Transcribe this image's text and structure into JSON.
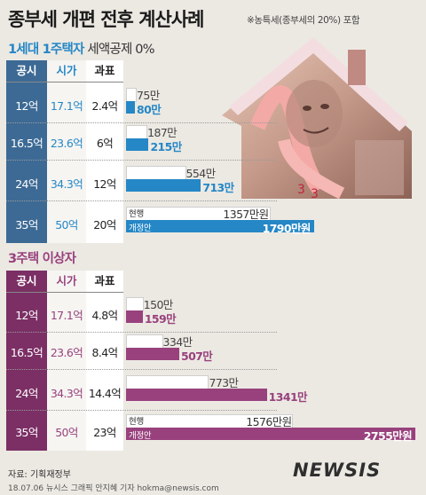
{
  "title": "종부세 개편 전후 계산사례",
  "note": "※농특세(종부세의 20%) 포함",
  "headers": {
    "gongsi": "공시",
    "siga": "시가",
    "gwapyo": "과표"
  },
  "labels": {
    "current": "현행",
    "proposed": "개정안"
  },
  "footer": {
    "source": "자료: 기획재정부",
    "credit": "18.07.06 뉴시스 그래픽 안지혜 기자 hokma@newsis.com"
  },
  "logo": "NEWSIS",
  "chart_data": [
    {
      "type": "bar",
      "title": "1세대 1주택자",
      "subtitle": "세액공제 0%",
      "accent": "#2587c6",
      "table_accent": "#3d6a95",
      "rows": [
        {
          "gongsi": "12억",
          "siga": "17.1억",
          "gwapyo": "2.4억"
        },
        {
          "gongsi": "16.5억",
          "siga": "23.6억",
          "gwapyo": "6억"
        },
        {
          "gongsi": "24억",
          "siga": "34.3억",
          "gwapyo": "12억"
        },
        {
          "gongsi": "35억",
          "siga": "50억",
          "gwapyo": "20억"
        }
      ],
      "series": [
        {
          "name": "현행",
          "values": [
            75,
            187,
            554,
            1357
          ]
        },
        {
          "name": "개정안",
          "values": [
            80,
            215,
            713,
            1790
          ]
        }
      ],
      "value_text": [
        [
          "75만",
          "80만"
        ],
        [
          "187만",
          "215만"
        ],
        [
          "554만",
          "713만"
        ],
        [
          "1357만원",
          "1790만원"
        ]
      ],
      "unit": "만원"
    },
    {
      "type": "bar",
      "title": "3주택 이상자",
      "accent": "#98417d",
      "table_accent": "#7b2f65",
      "rows": [
        {
          "gongsi": "12억",
          "siga": "17.1억",
          "gwapyo": "4.8억"
        },
        {
          "gongsi": "16.5억",
          "siga": "23.6억",
          "gwapyo": "8.4억"
        },
        {
          "gongsi": "24억",
          "siga": "34.3억",
          "gwapyo": "14.4억"
        },
        {
          "gongsi": "35억",
          "siga": "50억",
          "gwapyo": "23억"
        }
      ],
      "series": [
        {
          "name": "현행",
          "values": [
            150,
            334,
            773,
            1576
          ]
        },
        {
          "name": "개정안",
          "values": [
            159,
            507,
            1341,
            2755
          ]
        }
      ],
      "value_text": [
        [
          "150만",
          "159만"
        ],
        [
          "334만",
          "507만"
        ],
        [
          "773만",
          "1341만"
        ],
        [
          "1576만원",
          "2755만원"
        ]
      ],
      "unit": "만원"
    }
  ]
}
